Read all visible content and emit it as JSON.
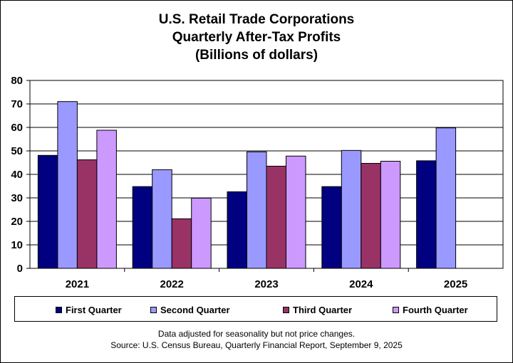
{
  "title_lines": [
    "U.S. Retail Trade Corporations",
    "Quarterly After-Tax Profits",
    "(Billions  of dollars)"
  ],
  "footnote_lines": [
    "Data adjusted for seasonality but not price changes.",
    "Source: U.S. Census Bureau, Quarterly Financial Report, September 9, 2025"
  ],
  "chart_data": {
    "type": "bar",
    "title": "U.S. Retail Trade Corporations Quarterly After-Tax Profits (Billions of dollars)",
    "categories": [
      "2021",
      "2022",
      "2023",
      "2024",
      "2025"
    ],
    "series": [
      {
        "name": "First Quarter",
        "color": "#000080",
        "values": [
          48.1,
          34.8,
          32.6,
          34.8,
          45.8
        ]
      },
      {
        "name": "Second Quarter",
        "color": "#9999ff",
        "values": [
          71.0,
          42.0,
          49.6,
          50.2,
          59.8
        ]
      },
      {
        "name": "Third Quarter",
        "color": "#993366",
        "values": [
          46.2,
          21.1,
          43.5,
          44.7,
          null
        ]
      },
      {
        "name": "Fourth Quarter",
        "color": "#cc99ff",
        "values": [
          58.8,
          29.9,
          47.8,
          45.6,
          null
        ]
      }
    ],
    "ylim": [
      0,
      80
    ],
    "yticks": [
      0,
      10,
      20,
      30,
      40,
      50,
      60,
      70,
      80
    ],
    "xlabel": "",
    "ylabel": "",
    "grid": true,
    "legend_position": "bottom"
  }
}
